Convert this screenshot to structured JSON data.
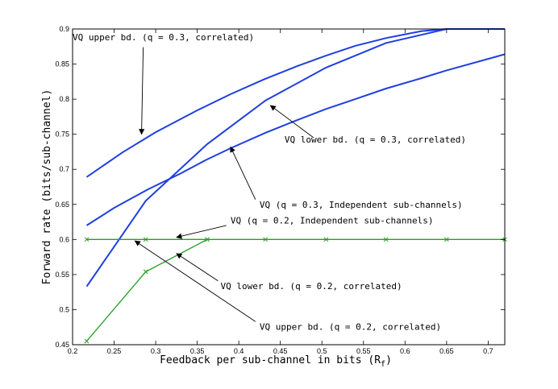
{
  "chart_data": {
    "type": "line",
    "xlabel": "Feedback per sub-channel in bits (R",
    "xlabel_sub": "f",
    "xlabel_close": ")",
    "ylabel": "Forward rate (bits/sub-channel)",
    "xlim": [
      0.2,
      0.72
    ],
    "ylim": [
      0.45,
      0.9
    ],
    "xticks": [
      "0.2",
      "0.25",
      "0.3",
      "0.35",
      "0.4",
      "0.45",
      "0.5",
      "0.55",
      "0.6",
      "0.65",
      "0.7"
    ],
    "yticks": [
      "0.45",
      "0.5",
      "0.55",
      "0.6",
      "0.65",
      "0.7",
      "0.75",
      "0.8",
      "0.85",
      "0.9"
    ],
    "grid": false,
    "colors": {
      "blue": "#1f3fe0",
      "green": "#22a022"
    },
    "series": [
      {
        "color": "blue",
        "x": [
          0.217,
          0.26,
          0.3,
          0.35,
          0.39,
          0.43,
          0.47,
          0.505,
          0.54,
          0.577,
          0.62,
          0.65,
          0.72
        ],
        "y": [
          0.689,
          0.724,
          0.753,
          0.784,
          0.807,
          0.828,
          0.847,
          0.862,
          0.876,
          0.887,
          0.897,
          0.9,
          0.9
        ]
      },
      {
        "color": "blue",
        "x": [
          0.217,
          0.288,
          0.362,
          0.432,
          0.505,
          0.577,
          0.65,
          0.72
        ],
        "y": [
          0.533,
          0.655,
          0.736,
          0.798,
          0.845,
          0.88,
          0.9,
          0.9
        ]
      },
      {
        "color": "blue",
        "x": [
          0.217,
          0.25,
          0.29,
          0.33,
          0.36,
          0.39,
          0.432,
          0.47,
          0.505,
          0.54,
          0.577,
          0.62,
          0.65,
          0.72
        ],
        "y": [
          0.62,
          0.645,
          0.671,
          0.694,
          0.713,
          0.73,
          0.752,
          0.77,
          0.786,
          0.8,
          0.815,
          0.83,
          0.841,
          0.864
        ]
      },
      {
        "color": "green",
        "marker": "x",
        "x": [
          0.217,
          0.288,
          0.362,
          0.432,
          0.505,
          0.577,
          0.65,
          0.72
        ],
        "y": [
          0.6,
          0.6,
          0.6,
          0.6,
          0.6,
          0.6,
          0.6,
          0.6
        ]
      },
      {
        "color": "green",
        "marker": "x",
        "x": [
          0.217,
          0.288,
          0.362
        ],
        "y": [
          0.455,
          0.554,
          0.6
        ]
      }
    ],
    "annotations": [
      {
        "text": "VQ upper bd. (q = 0.3, correlated)",
        "text_xy": [
          0.2,
          0.884
        ],
        "arrow_from": [
          0.285,
          0.874
        ],
        "arrow_to": [
          0.283,
          0.75
        ]
      },
      {
        "text": "VQ lower bd. (q = 0.3, correlated)",
        "text_xy": [
          0.455,
          0.738
        ],
        "arrow_from": [
          0.49,
          0.745
        ],
        "arrow_to": [
          0.438,
          0.791
        ]
      },
      {
        "text": "VQ (q = 0.3, Independent sub-channels)",
        "text_xy": [
          0.425,
          0.645
        ],
        "arrow_from": [
          0.42,
          0.657
        ],
        "arrow_to": [
          0.39,
          0.732
        ]
      },
      {
        "text": "VQ (q = 0.2, Independent sub-channels)",
        "text_xy": [
          0.39,
          0.623
        ],
        "arrow_from": [
          0.385,
          0.62
        ],
        "arrow_to": [
          0.325,
          0.603
        ]
      },
      {
        "text": "VQ lower bd. (q = 0.2, correlated)",
        "text_xy": [
          0.378,
          0.529
        ],
        "arrow_from": [
          0.375,
          0.541
        ],
        "arrow_to": [
          0.325,
          0.58
        ]
      },
      {
        "text": "VQ upper bd. (q = 0.2, correlated)",
        "text_xy": [
          0.425,
          0.471
        ],
        "arrow_from": [
          0.42,
          0.483
        ],
        "arrow_to": [
          0.275,
          0.598
        ]
      }
    ]
  }
}
